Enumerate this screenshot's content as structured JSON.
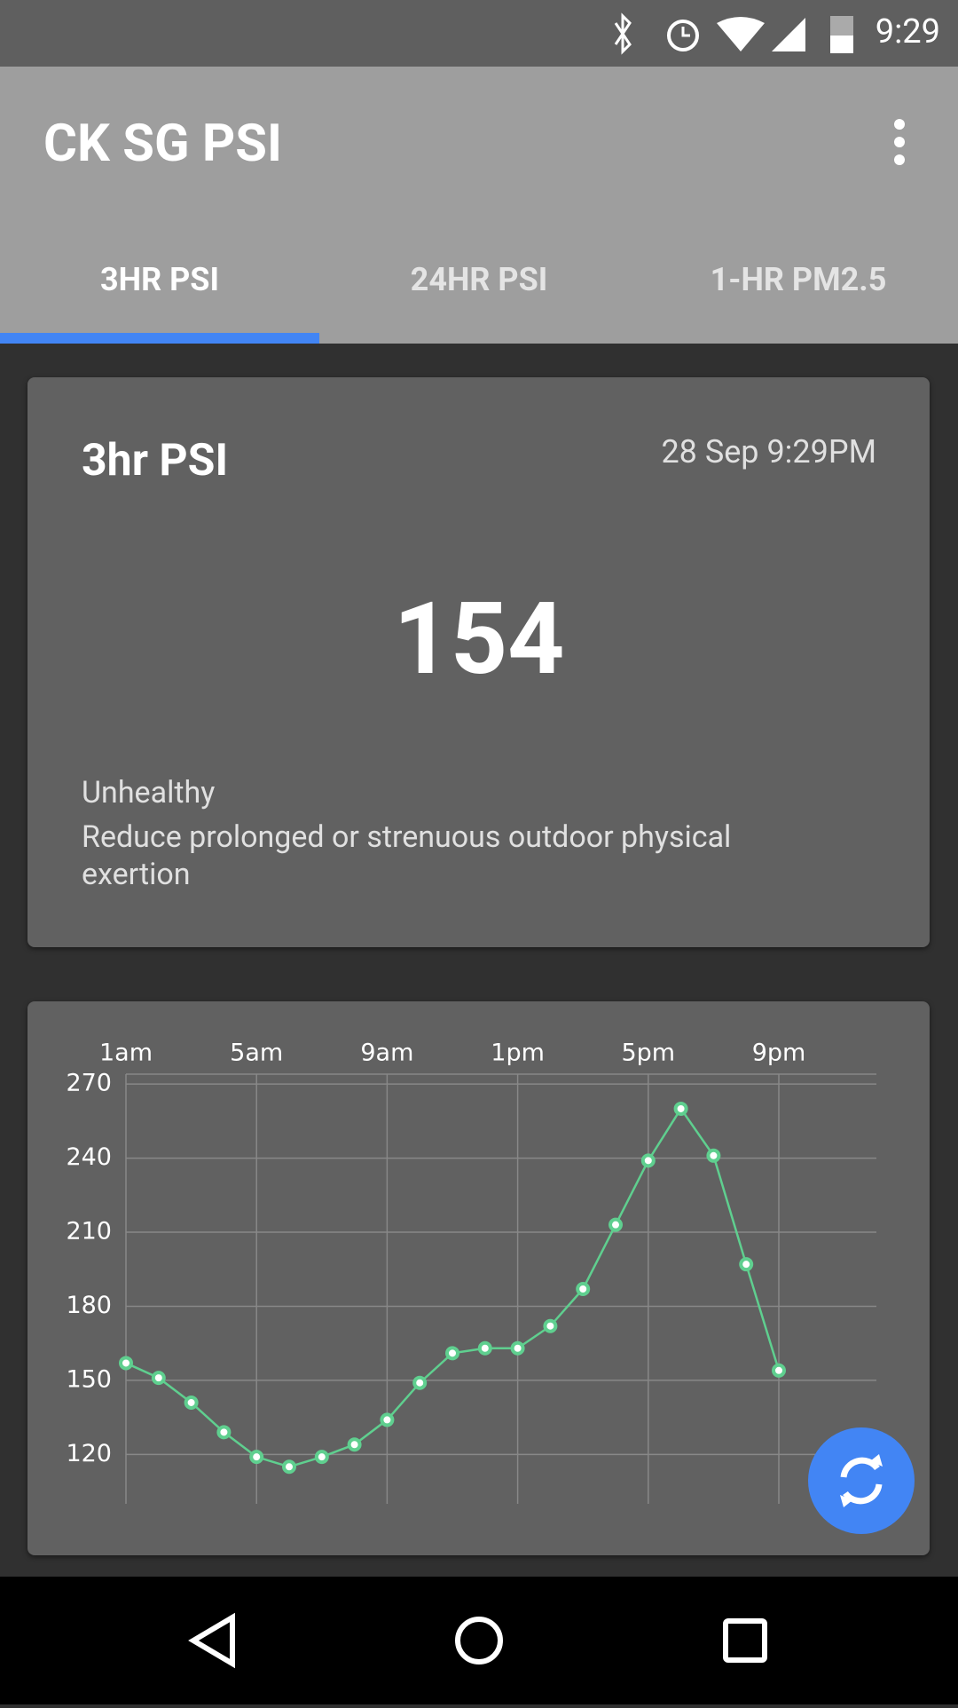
{
  "status_bar": {
    "time": "9:29"
  },
  "app_bar": {
    "title": "CK SG PSI"
  },
  "tabs": [
    "3HR PSI",
    "24HR PSI",
    "1-HR PM2.5"
  ],
  "reading_card": {
    "title": "3hr PSI",
    "timestamp": "28 Sep 9:29PM",
    "value": 154,
    "category": "Unhealthy",
    "advice": "Reduce prolonged or strenuous outdoor physical exertion"
  },
  "chart_data": {
    "type": "line",
    "categories": [
      "1am",
      null,
      null,
      null,
      "5am",
      null,
      null,
      null,
      "9am",
      null,
      null,
      null,
      "1pm",
      null,
      null,
      null,
      "5pm",
      null,
      null,
      null,
      "9pm"
    ],
    "values": [
      157,
      151,
      141,
      129,
      119,
      115,
      119,
      124,
      134,
      149,
      161,
      163,
      163,
      172,
      187,
      213,
      239,
      260,
      241,
      197,
      154
    ],
    "color": "#5fcf8f",
    "ylim": [
      100,
      274
    ],
    "yticks": [
      120,
      150,
      180,
      210,
      240,
      270
    ],
    "grid": true
  }
}
